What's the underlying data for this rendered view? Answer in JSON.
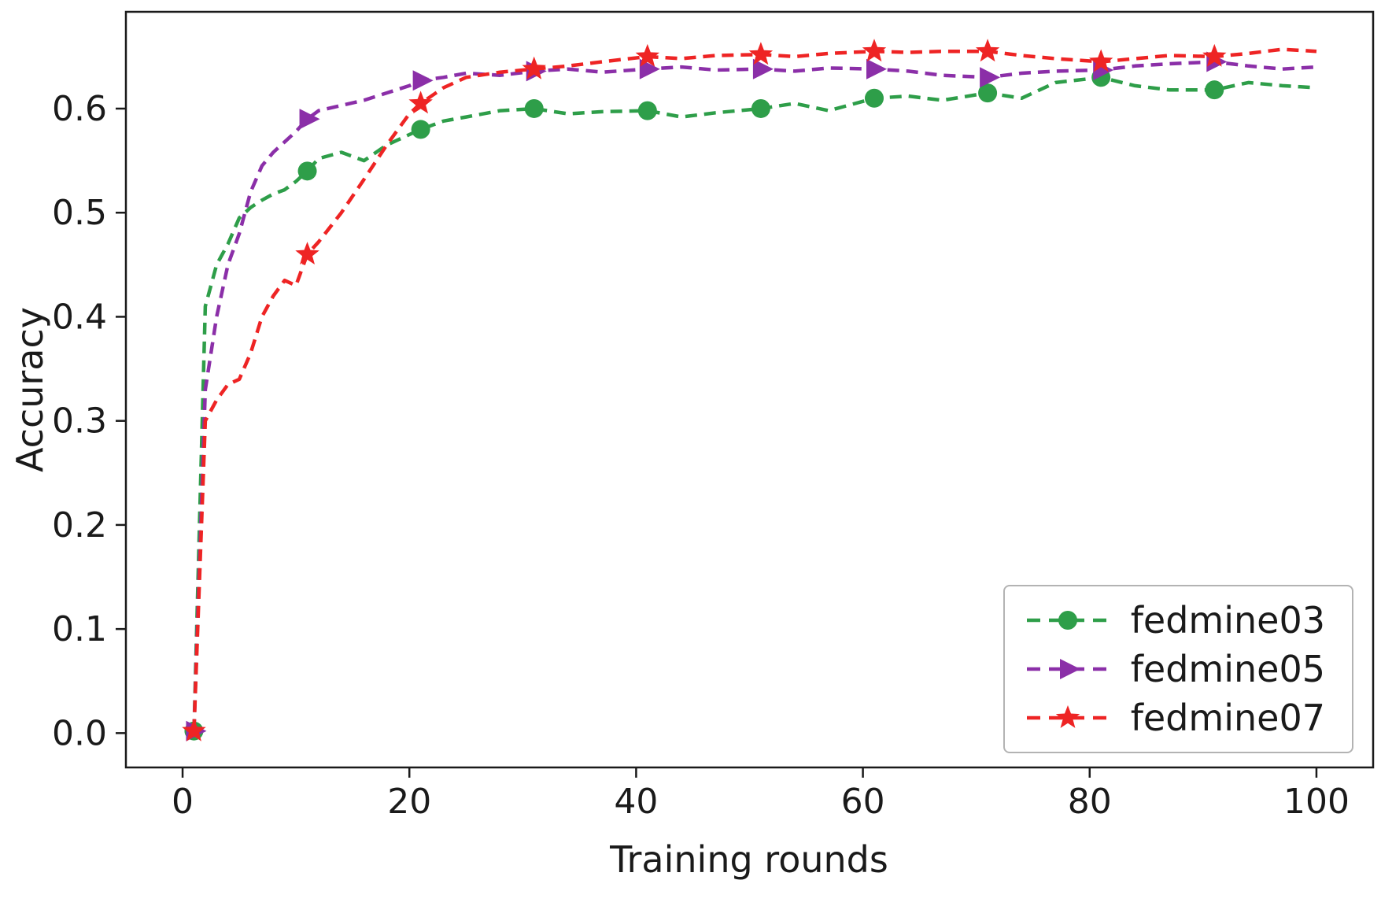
{
  "chart_data": {
    "type": "line",
    "xlabel": "Training rounds",
    "ylabel": "Accuracy",
    "xlim": [
      -5,
      105
    ],
    "ylim": [
      -0.033,
      0.693
    ],
    "xticks": [
      0,
      20,
      40,
      60,
      80,
      100
    ],
    "yticks": [
      0.0,
      0.1,
      0.2,
      0.3,
      0.4,
      0.5,
      0.6
    ],
    "grid": false,
    "legend_position": "lower right",
    "linestyle": "dashed",
    "marker_x": [
      1,
      11,
      21,
      31,
      41,
      51,
      61,
      71,
      81,
      91
    ],
    "x": [
      1,
      2,
      3,
      4,
      5,
      6,
      7,
      8,
      9,
      10,
      11,
      12,
      14,
      16,
      18,
      20,
      21,
      23,
      25,
      28,
      31,
      34,
      37,
      41,
      44,
      47,
      51,
      54,
      57,
      61,
      64,
      67,
      71,
      74,
      77,
      81,
      84,
      87,
      91,
      94,
      97,
      100
    ],
    "series": [
      {
        "name": "fedmine03",
        "color": "#2e9e49",
        "marker": "circle",
        "y": [
          0.002,
          0.41,
          0.45,
          0.47,
          0.495,
          0.505,
          0.512,
          0.518,
          0.522,
          0.53,
          0.54,
          0.552,
          0.558,
          0.55,
          0.565,
          0.575,
          0.58,
          0.588,
          0.592,
          0.598,
          0.6,
          0.595,
          0.597,
          0.598,
          0.592,
          0.596,
          0.6,
          0.605,
          0.598,
          0.61,
          0.612,
          0.608,
          0.615,
          0.61,
          0.625,
          0.63,
          0.622,
          0.618,
          0.618,
          0.625,
          0.622,
          0.62
        ]
      },
      {
        "name": "fedmine05",
        "color": "#8b2fa8",
        "marker": "triangle-right",
        "y": [
          0.002,
          0.33,
          0.4,
          0.45,
          0.48,
          0.52,
          0.545,
          0.558,
          0.568,
          0.578,
          0.59,
          0.598,
          0.603,
          0.608,
          0.615,
          0.622,
          0.627,
          0.63,
          0.634,
          0.632,
          0.636,
          0.638,
          0.635,
          0.638,
          0.64,
          0.637,
          0.638,
          0.636,
          0.639,
          0.638,
          0.636,
          0.632,
          0.63,
          0.634,
          0.636,
          0.637,
          0.641,
          0.643,
          0.645,
          0.641,
          0.638,
          0.64
        ]
      },
      {
        "name": "fedmine07",
        "color": "#ee2424",
        "marker": "star",
        "y": [
          0.002,
          0.3,
          0.32,
          0.335,
          0.34,
          0.365,
          0.4,
          0.42,
          0.435,
          0.43,
          0.46,
          0.472,
          0.5,
          0.532,
          0.565,
          0.595,
          0.605,
          0.62,
          0.63,
          0.635,
          0.638,
          0.641,
          0.645,
          0.65,
          0.648,
          0.651,
          0.652,
          0.65,
          0.653,
          0.655,
          0.654,
          0.655,
          0.655,
          0.651,
          0.648,
          0.645,
          0.648,
          0.651,
          0.65,
          0.653,
          0.657,
          0.655
        ]
      }
    ]
  }
}
